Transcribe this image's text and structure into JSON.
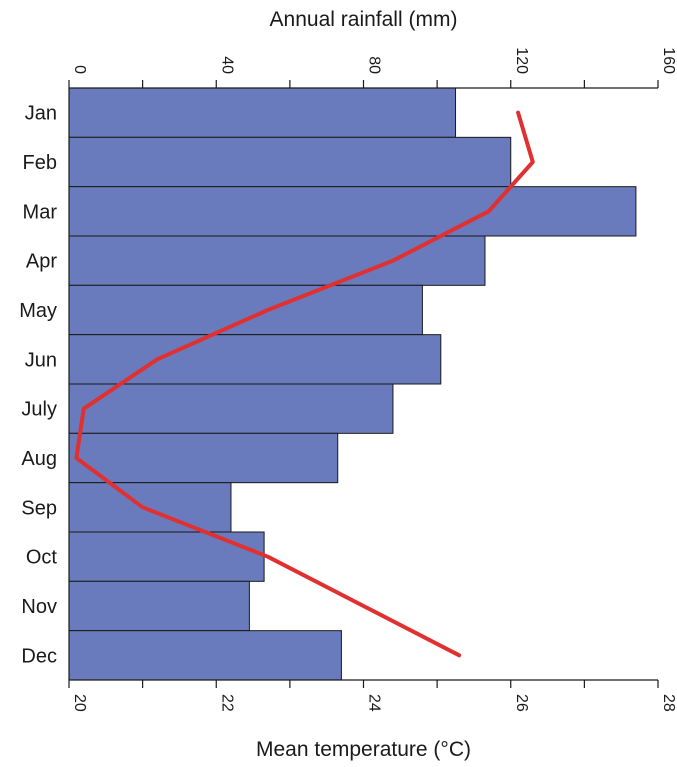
{
  "chart_data": {
    "type": "bar",
    "orientation": "horizontal",
    "categories": [
      "Jan",
      "Feb",
      "Mar",
      "Apr",
      "May",
      "Jun",
      "July",
      "Aug",
      "Sep",
      "Oct",
      "Nov",
      "Dec"
    ],
    "rainfall": {
      "axis_title": "Annual rainfall (mm)",
      "axis_position": "top",
      "range": [
        0,
        160
      ],
      "ticks": [
        "0",
        "40",
        "80",
        "120",
        "160"
      ],
      "values": [
        105,
        120,
        154,
        113,
        96,
        101,
        88,
        73,
        44,
        53,
        49,
        74
      ],
      "color": "#6a7bbd"
    },
    "temperature": {
      "axis_title": "Mean temperature (°C)",
      "axis_position": "bottom",
      "range": [
        20,
        28
      ],
      "ticks": [
        "20",
        "22",
        "24",
        "26",
        "28"
      ],
      "values": [
        26.1,
        26.3,
        25.7,
        24.4,
        22.7,
        21.2,
        20.2,
        20.1,
        21.0,
        22.7,
        24.0,
        25.3
      ],
      "color": "#e03030"
    },
    "grid": false
  }
}
